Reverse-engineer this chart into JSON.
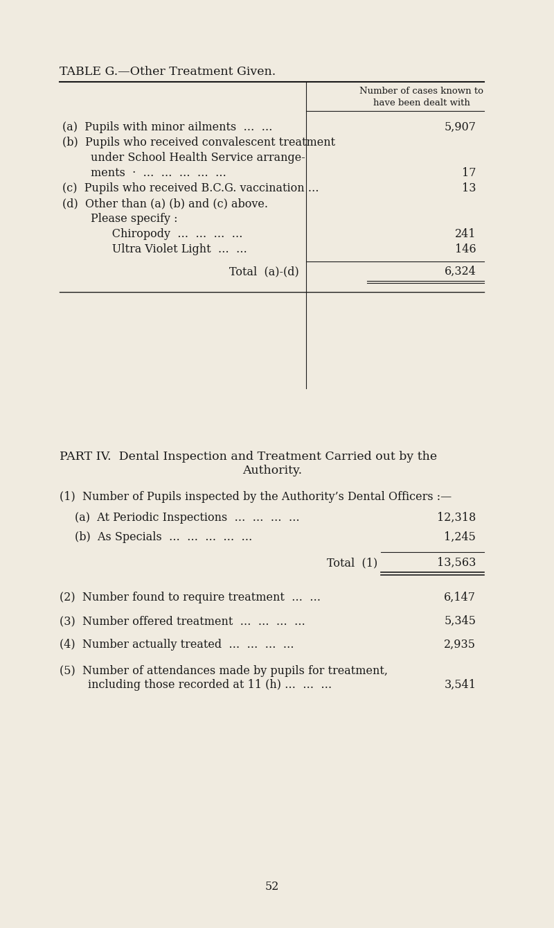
{
  "bg_color": "#f0ebe0",
  "text_color": "#1a1a1a",
  "title": "TABLE G.—Other Treatment Given.",
  "col_header": "Number of cases known to\nhave been dealt with",
  "table_g_rows": [
    {
      "label": "(a)  Pupils with minor ailments  …  …",
      "value": "5,907",
      "indent": 0,
      "bold": false
    },
    {
      "label": "(b)  Pupils who received convalescent treatment",
      "value": "",
      "indent": 0,
      "bold": false
    },
    {
      "label": "        under School Health Service arrange-",
      "value": "",
      "indent": 0,
      "bold": false
    },
    {
      "label": "        ments  ·  …  …  …  …  …",
      "value": "17",
      "indent": 0,
      "bold": false
    },
    {
      "label": "(c)  Pupils who received B.C.G. vaccination …",
      "value": "13",
      "indent": 0,
      "bold": false
    },
    {
      "label": "(d)  Other than (a) (b) and (c) above.",
      "value": "",
      "indent": 0,
      "bold": false
    },
    {
      "label": "        Please specify :",
      "value": "",
      "indent": 0,
      "bold": false
    },
    {
      "label": "              Chiropody  …  …  …  …",
      "value": "241",
      "indent": 0,
      "bold": false
    },
    {
      "label": "              Ultra Violet Light  …  …",
      "value": "146",
      "indent": 0,
      "bold": false
    }
  ],
  "total_label": "Total  (a)-(d)",
  "total_value": "6,324",
  "part4_title_line1": "PART IV.  Dental Inspection and Treatment Carried out by the",
  "part4_title_line2": "Authority.",
  "section1_header": "(1)  Number of Pupils inspected by the Authority’s Dental Officers :—",
  "section1_rows": [
    {
      "label": "(a)  At Periodic Inspections  …  …  …  …",
      "value": "12,318"
    },
    {
      "label": "(b)  As Specials  …  …  …  …  …",
      "value": "1,245"
    }
  ],
  "total1_label": "Total  (1)",
  "total1_value": "13,563",
  "section2": "(2)  Number found to require treatment  …  …",
  "section2_value": "6,147",
  "section3": "(3)  Number offered treatment  …  …  …  …",
  "section3_value": "5,345",
  "section4": "(4)  Number actually treated  …  …  …  …",
  "section4_value": "2,935",
  "section5_line1": "(5)  Number of attendances made by pupils for treatment,",
  "section5_line2": "        including those recorded at 11 (h) …  …  …",
  "section5_value": "3,541",
  "page_number": "52",
  "font_size_title": 12.5,
  "font_size_body": 11.5,
  "font_size_part4": 12.5,
  "font_size_page": 11.5
}
